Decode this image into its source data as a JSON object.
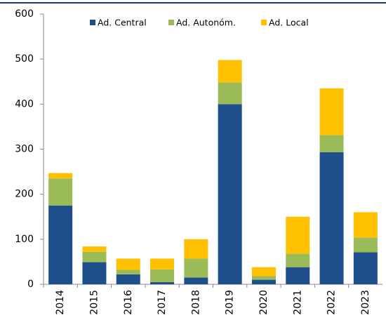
{
  "chart_data": {
    "type": "stacked-bar",
    "categories": [
      "2014",
      "2015",
      "2016",
      "2017",
      "2018",
      "2019",
      "2020",
      "2021",
      "2022",
      "2023"
    ],
    "series": [
      {
        "name": "Ad. Central",
        "color": "#1f4e8c",
        "values": [
          175,
          49,
          22,
          5,
          15,
          400,
          10,
          38,
          293,
          71
        ]
      },
      {
        "name": "Ad. Autonóm.",
        "color": "#9bbb59",
        "values": [
          60,
          23,
          10,
          28,
          42,
          48,
          8,
          30,
          38,
          33
        ]
      },
      {
        "name": "Ad. Local",
        "color": "#ffc000",
        "values": [
          12,
          12,
          25,
          24,
          43,
          50,
          20,
          82,
          104,
          56
        ]
      }
    ],
    "ylim": [
      0,
      600
    ],
    "yticks": [
      0,
      100,
      200,
      300,
      400,
      500,
      600
    ]
  }
}
